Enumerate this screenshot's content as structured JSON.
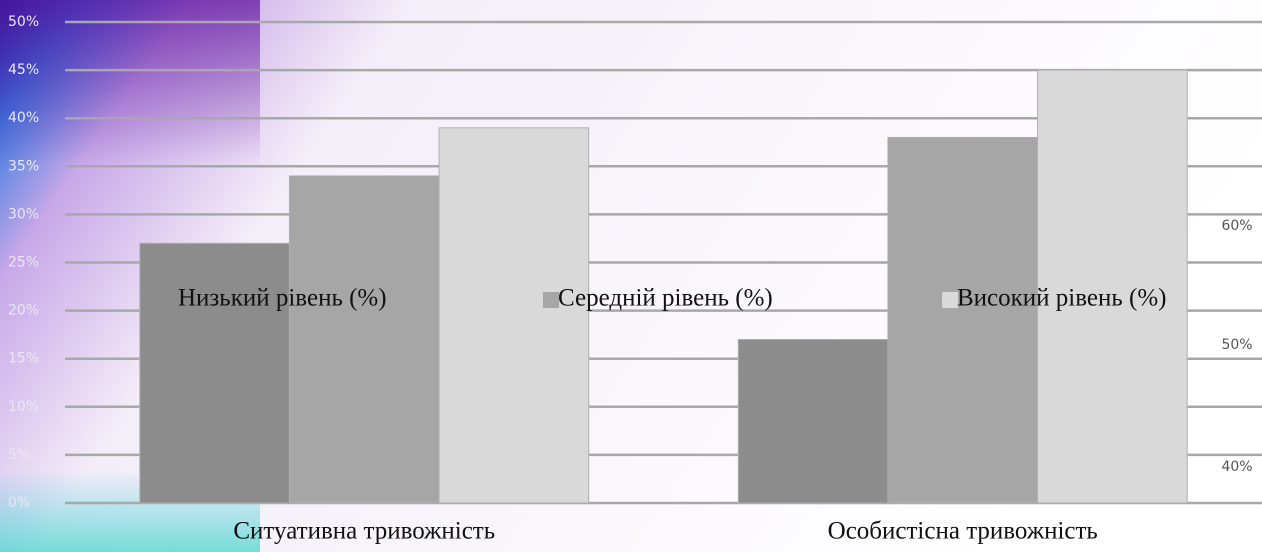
{
  "chart_data": {
    "type": "bar",
    "categories": [
      "Ситуативна тривожність",
      "Особистісна тривожність"
    ],
    "series": [
      {
        "name": "Низький рівень (%)",
        "color": "#8c8c8c",
        "values": [
          27,
          17
        ]
      },
      {
        "name": "Середній рівень (%)",
        "color": "#a6a6a6",
        "values": [
          34,
          38
        ]
      },
      {
        "name": "Високий рівень (%)",
        "color": "#d9d9d9",
        "values": [
          39,
          45
        ]
      }
    ],
    "ylim": [
      0,
      50
    ],
    "yticks": [
      {
        "value": 0,
        "label": "0%"
      },
      {
        "value": 5,
        "label": "5%"
      },
      {
        "value": 10,
        "label": "10%"
      },
      {
        "value": 15,
        "label": "15%"
      },
      {
        "value": 20,
        "label": "20%"
      },
      {
        "value": 25,
        "label": "25%"
      },
      {
        "value": 30,
        "label": "30%"
      },
      {
        "value": 35,
        "label": "35%"
      },
      {
        "value": 40,
        "label": "40%"
      },
      {
        "value": 45,
        "label": "45%"
      },
      {
        "value": 50,
        "label": "50%"
      }
    ],
    "grid": true,
    "legend": "center",
    "annotations": [
      "60%",
      "50%",
      "40%"
    ]
  }
}
